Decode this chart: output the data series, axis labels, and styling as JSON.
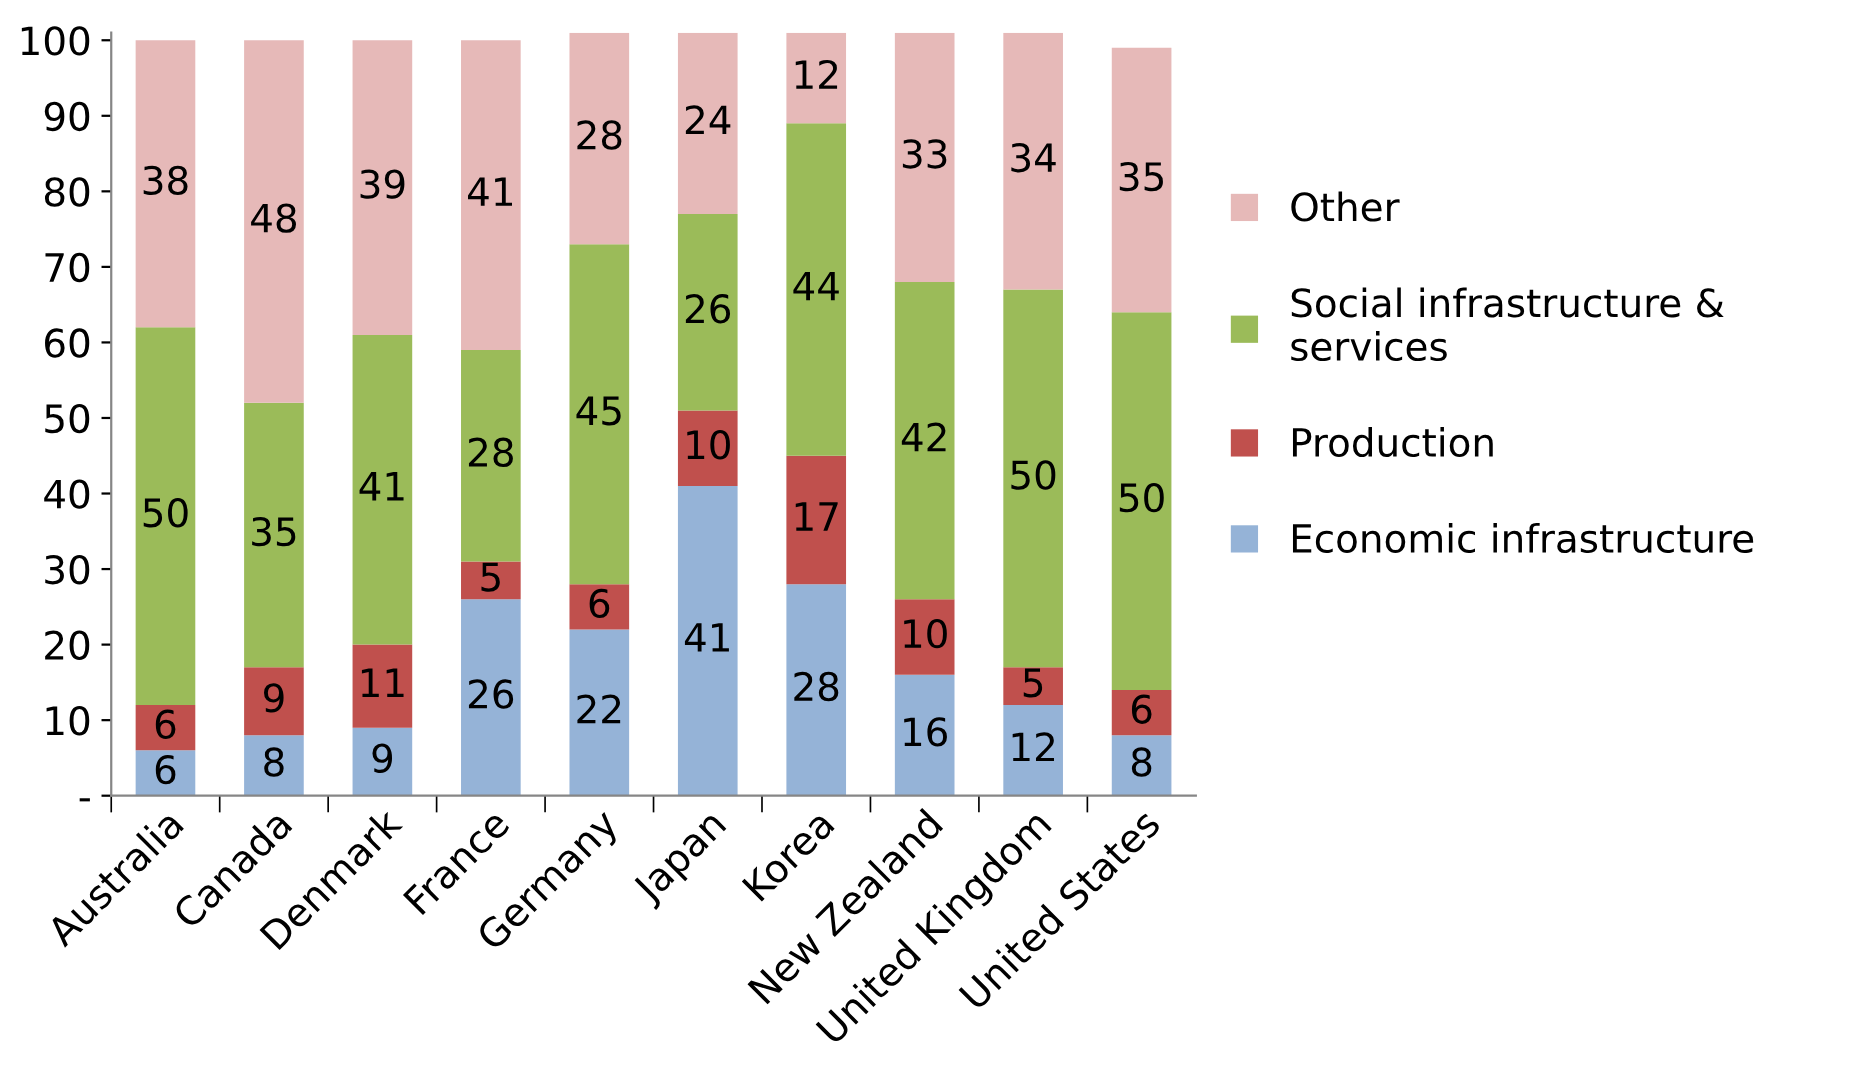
{
  "chart_data": {
    "type": "bar",
    "stacked": true,
    "data_labels": true,
    "grid": false,
    "legend": "right",
    "categories": [
      "Australia",
      "Canada",
      "Denmark",
      "France",
      "Germany",
      "Japan",
      "Korea",
      "New Zealand",
      "United Kingdom",
      "United States"
    ],
    "series": [
      {
        "name": "Economic infrastructure",
        "color": "#95b3d7",
        "values": [
          6,
          8,
          9,
          26,
          22,
          41,
          28,
          16,
          12,
          8
        ]
      },
      {
        "name": "Production",
        "color": "#c0504d",
        "values": [
          6,
          9,
          11,
          5,
          6,
          10,
          17,
          10,
          5,
          6
        ]
      },
      {
        "name": "Social infrastructure & services",
        "color": "#9bbb59",
        "values": [
          50,
          35,
          41,
          28,
          45,
          26,
          44,
          42,
          50,
          50
        ]
      },
      {
        "name": "Other",
        "color": "#e6b9b8",
        "values": [
          38,
          48,
          39,
          41,
          28,
          24,
          12,
          33,
          34,
          35
        ]
      }
    ],
    "ylim": [
      0,
      101
    ],
    "yticks": [
      {
        "value": 0,
        "label": "-"
      },
      10,
      20,
      30,
      40,
      50,
      60,
      70,
      80,
      90,
      100
    ]
  }
}
